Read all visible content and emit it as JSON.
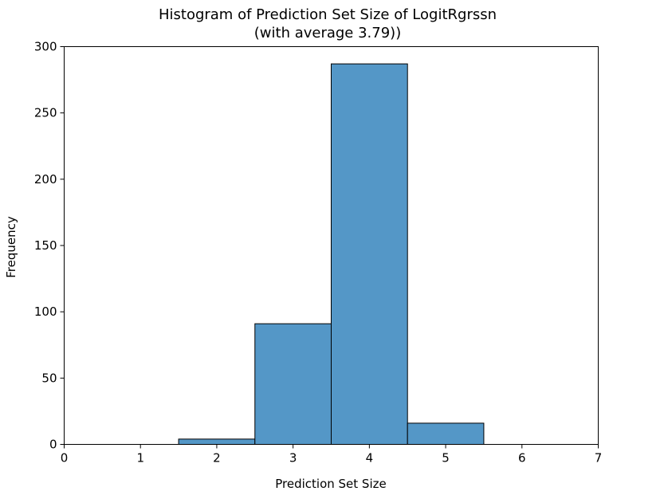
{
  "chart_data": {
    "type": "bar",
    "title": "Histogram of Prediction Set Size of LogitRgrssn",
    "subtitle": "(with average 3.79))",
    "xlabel": "Prediction Set Size",
    "ylabel": "Frequency",
    "xlim": [
      0,
      7
    ],
    "ylim": [
      0,
      300
    ],
    "xticks": [
      "0",
      "1",
      "2",
      "3",
      "4",
      "5",
      "6",
      "7"
    ],
    "yticks": [
      "0",
      "50",
      "100",
      "150",
      "200",
      "250",
      "300"
    ],
    "grid": false,
    "bar_color": "#5497c7",
    "edge_color": "#000000",
    "bins": [
      {
        "start": 1.5,
        "end": 2.5,
        "value": 4
      },
      {
        "start": 2.5,
        "end": 3.5,
        "value": 91
      },
      {
        "start": 3.5,
        "end": 4.5,
        "value": 287
      },
      {
        "start": 4.5,
        "end": 5.5,
        "value": 16
      }
    ]
  }
}
